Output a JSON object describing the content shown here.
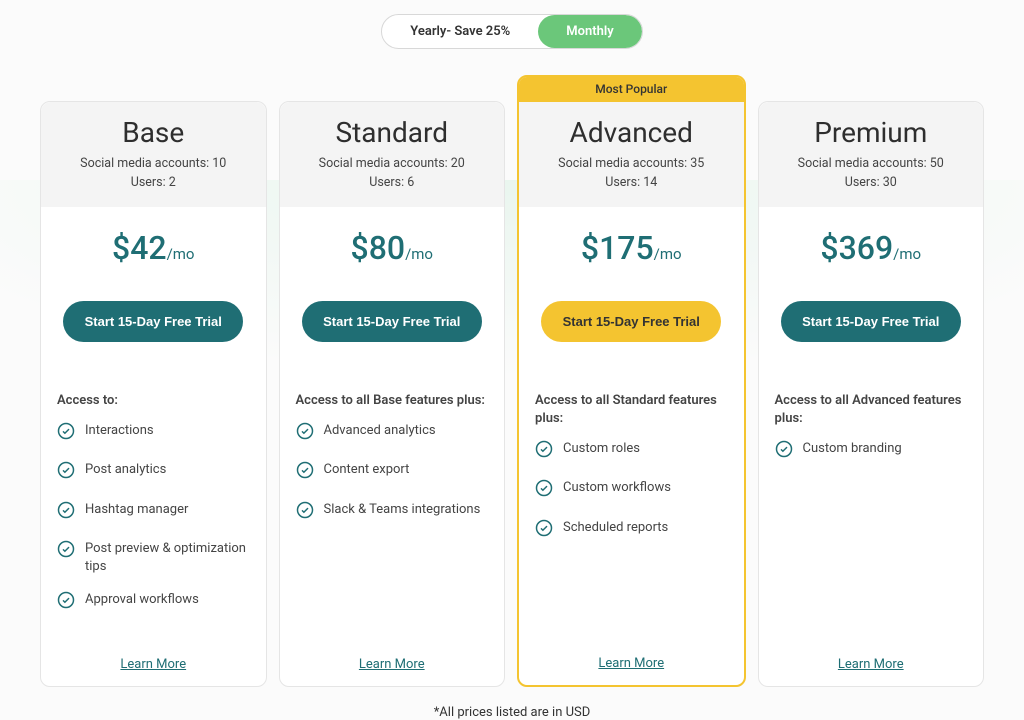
{
  "colors": {
    "teal": "#1f6e74",
    "yellow": "#f4c430",
    "green_toggle": "#6bc77a",
    "link": "#1f6e74",
    "check_stroke": "#1f6e74"
  },
  "toggle": {
    "yearly_label": "Yearly- Save 25%",
    "monthly_label": "Monthly",
    "active": "monthly"
  },
  "popular_badge": "Most Popular",
  "cta_label": "Start 15-Day Free Trial",
  "learn_more_label": "Learn More",
  "price_suffix": "/mo",
  "footnote": "*All prices listed are in USD",
  "plans": [
    {
      "id": "base",
      "name": "Base",
      "accounts_line": "Social media accounts: 10",
      "users_line": "Users: 2",
      "price": "$42",
      "popular": false,
      "cta_bg": "#1f6e74",
      "cta_color": "#ffffff",
      "features_title": "Access to:",
      "features": [
        "Interactions",
        "Post analytics",
        "Hashtag manager",
        "Post preview & optimization tips",
        "Approval workflows"
      ]
    },
    {
      "id": "standard",
      "name": "Standard",
      "accounts_line": "Social media accounts: 20",
      "users_line": "Users: 6",
      "price": "$80",
      "popular": false,
      "cta_bg": "#1f6e74",
      "cta_color": "#ffffff",
      "features_title": "Access to all Base features plus:",
      "features": [
        "Advanced analytics",
        "Content export",
        "Slack & Teams integrations"
      ]
    },
    {
      "id": "advanced",
      "name": "Advanced",
      "accounts_line": "Social media accounts: 35",
      "users_line": "Users: 14",
      "price": "$175",
      "popular": true,
      "cta_bg": "#f4c430",
      "cta_color": "#333333",
      "features_title": "Access to all Standard features plus:",
      "features": [
        "Custom roles",
        "Custom workflows",
        "Scheduled reports"
      ]
    },
    {
      "id": "premium",
      "name": "Premium",
      "accounts_line": "Social media accounts: 50",
      "users_line": "Users: 30",
      "price": "$369",
      "popular": false,
      "cta_bg": "#1f6e74",
      "cta_color": "#ffffff",
      "features_title": "Access to all Advanced features plus:",
      "features": [
        "Custom branding"
      ]
    }
  ]
}
